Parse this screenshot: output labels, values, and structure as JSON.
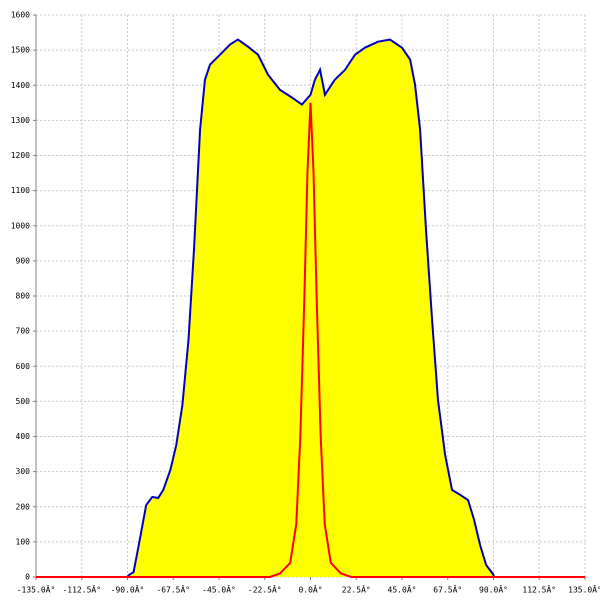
{
  "chart_data": {
    "type": "area",
    "xlim": [
      -135,
      135
    ],
    "xticks": [
      {
        "value": -135,
        "label": "-135.0Â°"
      },
      {
        "value": -112.5,
        "label": "-112.5Â°"
      },
      {
        "value": -90,
        "label": "-90.0Â°"
      },
      {
        "value": -67.5,
        "label": "-67.5Â°"
      },
      {
        "value": -45,
        "label": "-45.0Â°"
      },
      {
        "value": -22.5,
        "label": "-22.5Â°"
      },
      {
        "value": 0,
        "label": "0.0Â°"
      },
      {
        "value": 22.5,
        "label": "22.5Â°"
      },
      {
        "value": 45,
        "label": "45.0Â°"
      },
      {
        "value": 67.5,
        "label": "67.5Â°"
      },
      {
        "value": 90,
        "label": "90.0Â°"
      },
      {
        "value": 112.5,
        "label": "112.5Â°"
      },
      {
        "value": 135,
        "label": "135.0Â°"
      }
    ],
    "ylim": [
      0,
      1600
    ],
    "yticks": [
      0,
      100,
      200,
      300,
      400,
      500,
      600,
      700,
      800,
      900,
      1000,
      1100,
      1200,
      1300,
      1400,
      1500,
      1600
    ],
    "grid": true,
    "series": [
      {
        "color": "#0000c0",
        "fill": "#ffff00",
        "x": [
          -90,
          -87,
          -84,
          -80.8,
          -77.8,
          -74.9,
          -72.4,
          -68.9,
          -66,
          -63,
          -60,
          -57.3,
          -54.3,
          -51.9,
          -49.4,
          -44.5,
          -39.6,
          -35.7,
          -30.8,
          -25.8,
          -20.9,
          -15,
          -9.1,
          -4.2,
          0,
          2.2,
          4.7,
          7.1,
          12,
          17,
          21.9,
          26.8,
          33.2,
          39.1,
          45,
          49,
          51.4,
          53.9,
          56.8,
          59.8,
          62.7,
          66.2,
          69.6,
          73.6,
          77.5,
          80.5,
          83.4,
          86.4,
          89.4,
          90.3
        ],
        "values": [
          3,
          14,
          105,
          205,
          228,
          225,
          248,
          305,
          376,
          490,
          675,
          932,
          1274,
          1416,
          1459,
          1487,
          1516,
          1530,
          1510,
          1487,
          1430,
          1387,
          1365,
          1345,
          1373,
          1416,
          1444,
          1373,
          1416,
          1444,
          1487,
          1507,
          1524,
          1530,
          1507,
          1473,
          1402,
          1274,
          989,
          732,
          504,
          348,
          248,
          234,
          219,
          162,
          91,
          34,
          11,
          3
        ]
      },
      {
        "color": "#ff0000",
        "x": [
          -135,
          -20,
          -15,
          -10,
          -7,
          -5,
          -3,
          -1.5,
          0,
          1.5,
          3,
          5,
          7,
          10,
          15,
          20,
          135
        ],
        "values": [
          0,
          0,
          10,
          40,
          150,
          400,
          800,
          1150,
          1350,
          1150,
          800,
          400,
          150,
          40,
          10,
          0,
          0
        ]
      }
    ]
  }
}
